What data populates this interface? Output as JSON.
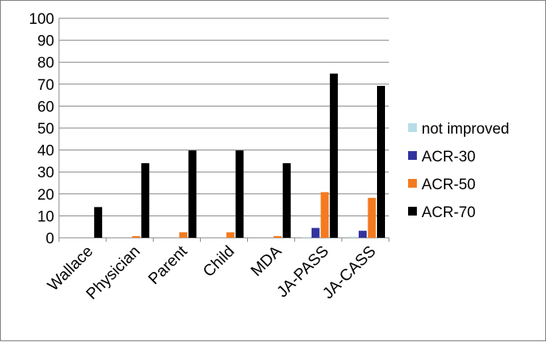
{
  "chart_data": {
    "type": "bar",
    "title": "",
    "xlabel": "",
    "ylabel": "",
    "ylim": [
      0,
      100
    ],
    "yticks": [
      0,
      10,
      20,
      30,
      40,
      50,
      60,
      70,
      80,
      90,
      100
    ],
    "grid": true,
    "legend_position": "right",
    "categories": [
      "Wallace",
      "Physician",
      "Parent",
      "Child",
      "MDA",
      "JA-PASS",
      "JA-CASS"
    ],
    "series": [
      {
        "name": "not improved",
        "color": "#b7dde8",
        "values": [
          0,
          0,
          0,
          0,
          0,
          0.3,
          0.5
        ]
      },
      {
        "name": "ACR-30",
        "color": "#3333a0",
        "values": [
          0,
          0,
          0,
          0,
          0,
          4.5,
          3.2
        ]
      },
      {
        "name": "ACR-50",
        "color": "#f47a1f",
        "values": [
          0,
          0.8,
          2.5,
          2.5,
          0.8,
          20.8,
          18.2
        ]
      },
      {
        "name": "ACR-70",
        "color": "#000000",
        "values": [
          14,
          34,
          39.8,
          39.8,
          34,
          74.8,
          69.2
        ]
      }
    ]
  }
}
